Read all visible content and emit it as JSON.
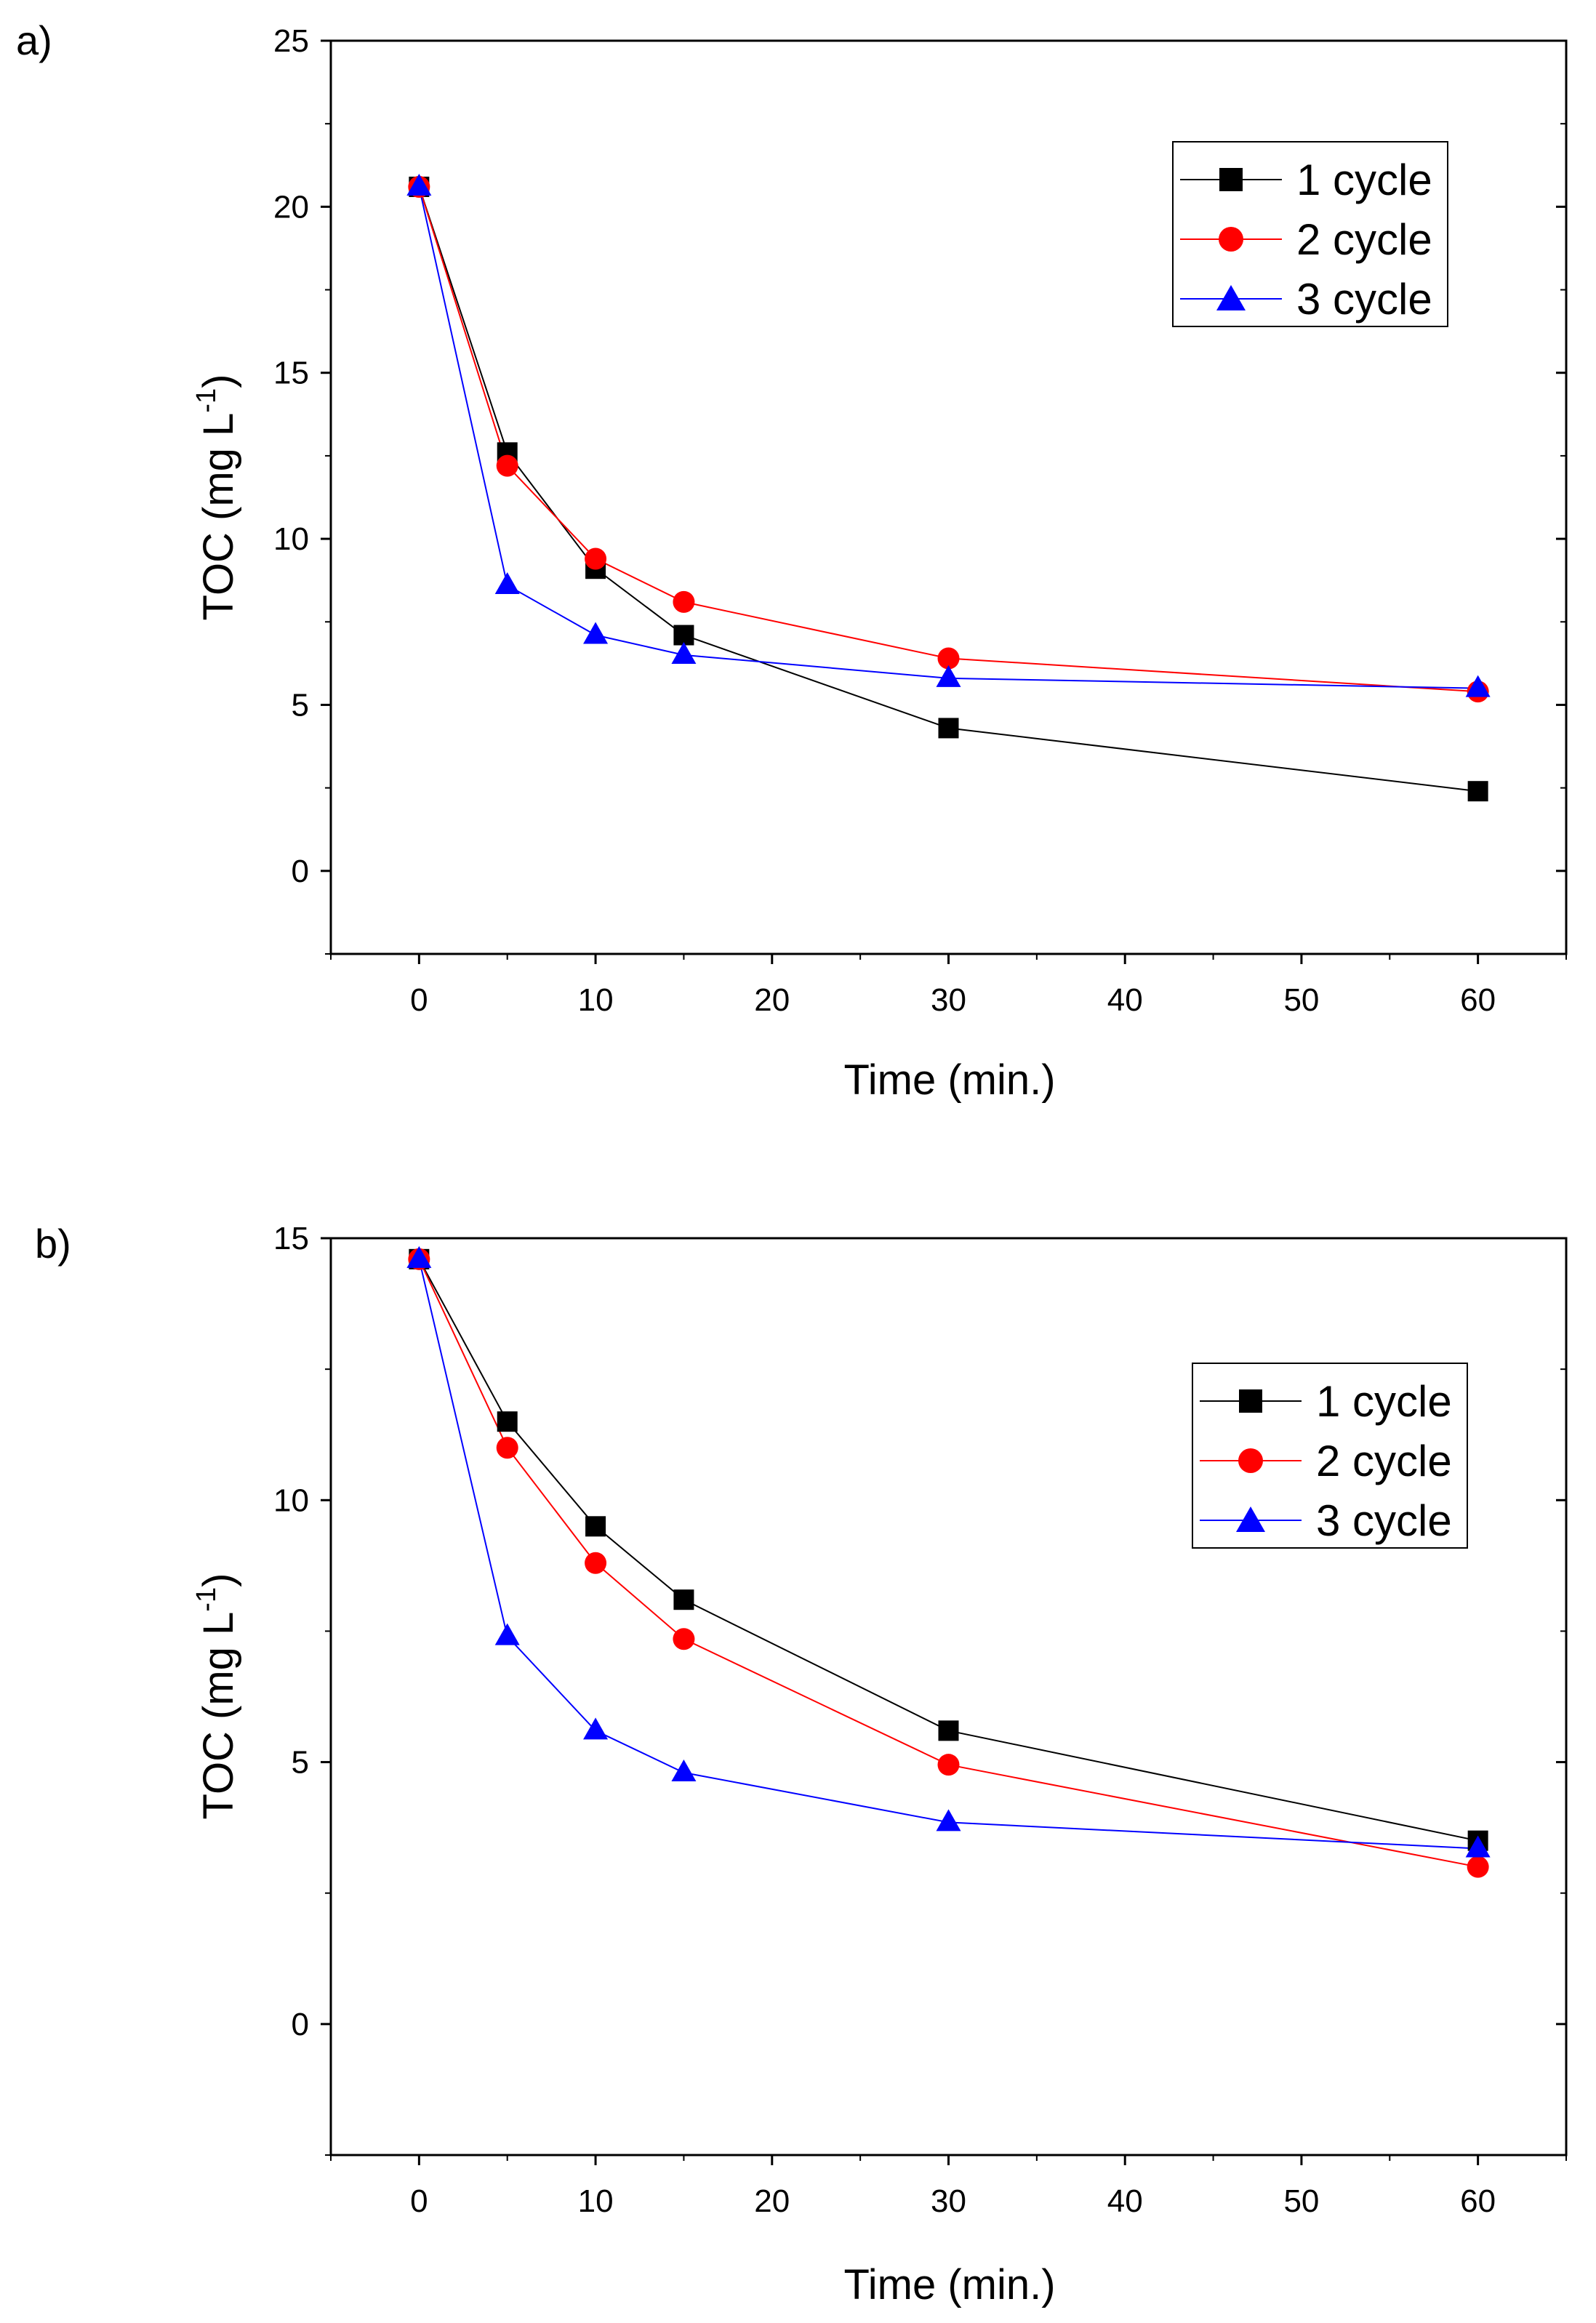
{
  "chart_data": [
    {
      "type": "line",
      "panel_label": "a)",
      "xlabel": "Time (min.)",
      "ylabel_base": "TOC (mg L",
      "ylabel_sup": "-1",
      "ylabel_end": ")",
      "xlim": [
        -5,
        65
      ],
      "ylim": [
        -2.5,
        25
      ],
      "xticks": [
        0,
        10,
        20,
        30,
        40,
        50,
        60
      ],
      "yticks": [
        0,
        5,
        10,
        15,
        20,
        25
      ],
      "x": [
        0,
        5,
        10,
        15,
        30,
        60
      ],
      "legend_position": "top-right",
      "series": [
        {
          "name": "1 cycle",
          "color": "#000000",
          "marker": "square",
          "values": [
            20.6,
            12.6,
            9.1,
            7.1,
            4.3,
            2.4
          ]
        },
        {
          "name": "2 cycle",
          "color": "#ff0000",
          "marker": "circle",
          "values": [
            20.6,
            12.2,
            9.4,
            8.1,
            6.4,
            5.4
          ]
        },
        {
          "name": "3 cycle",
          "color": "#0000ff",
          "marker": "triangle",
          "values": [
            20.6,
            8.6,
            7.1,
            6.5,
            5.8,
            5.5
          ]
        }
      ]
    },
    {
      "type": "line",
      "panel_label": "b)",
      "xlabel": "Time (min.)",
      "ylabel_base": "TOC (mg L",
      "ylabel_sup": "-1",
      "ylabel_end": ")",
      "xlim": [
        -5,
        65
      ],
      "ylim": [
        -2.5,
        15
      ],
      "xticks": [
        0,
        10,
        20,
        30,
        40,
        50,
        60
      ],
      "yticks": [
        0,
        5,
        10,
        15
      ],
      "x": [
        0,
        5,
        10,
        15,
        30,
        60
      ],
      "legend_position": "top-right",
      "series": [
        {
          "name": "1 cycle",
          "color": "#000000",
          "marker": "square",
          "values": [
            14.6,
            11.5,
            9.5,
            8.1,
            5.6,
            3.5
          ]
        },
        {
          "name": "2 cycle",
          "color": "#ff0000",
          "marker": "circle",
          "values": [
            14.6,
            11.0,
            8.8,
            7.35,
            4.95,
            3.0
          ]
        },
        {
          "name": "3 cycle",
          "color": "#0000ff",
          "marker": "triangle",
          "values": [
            14.6,
            7.4,
            5.6,
            4.8,
            3.85,
            3.35
          ]
        }
      ]
    }
  ]
}
